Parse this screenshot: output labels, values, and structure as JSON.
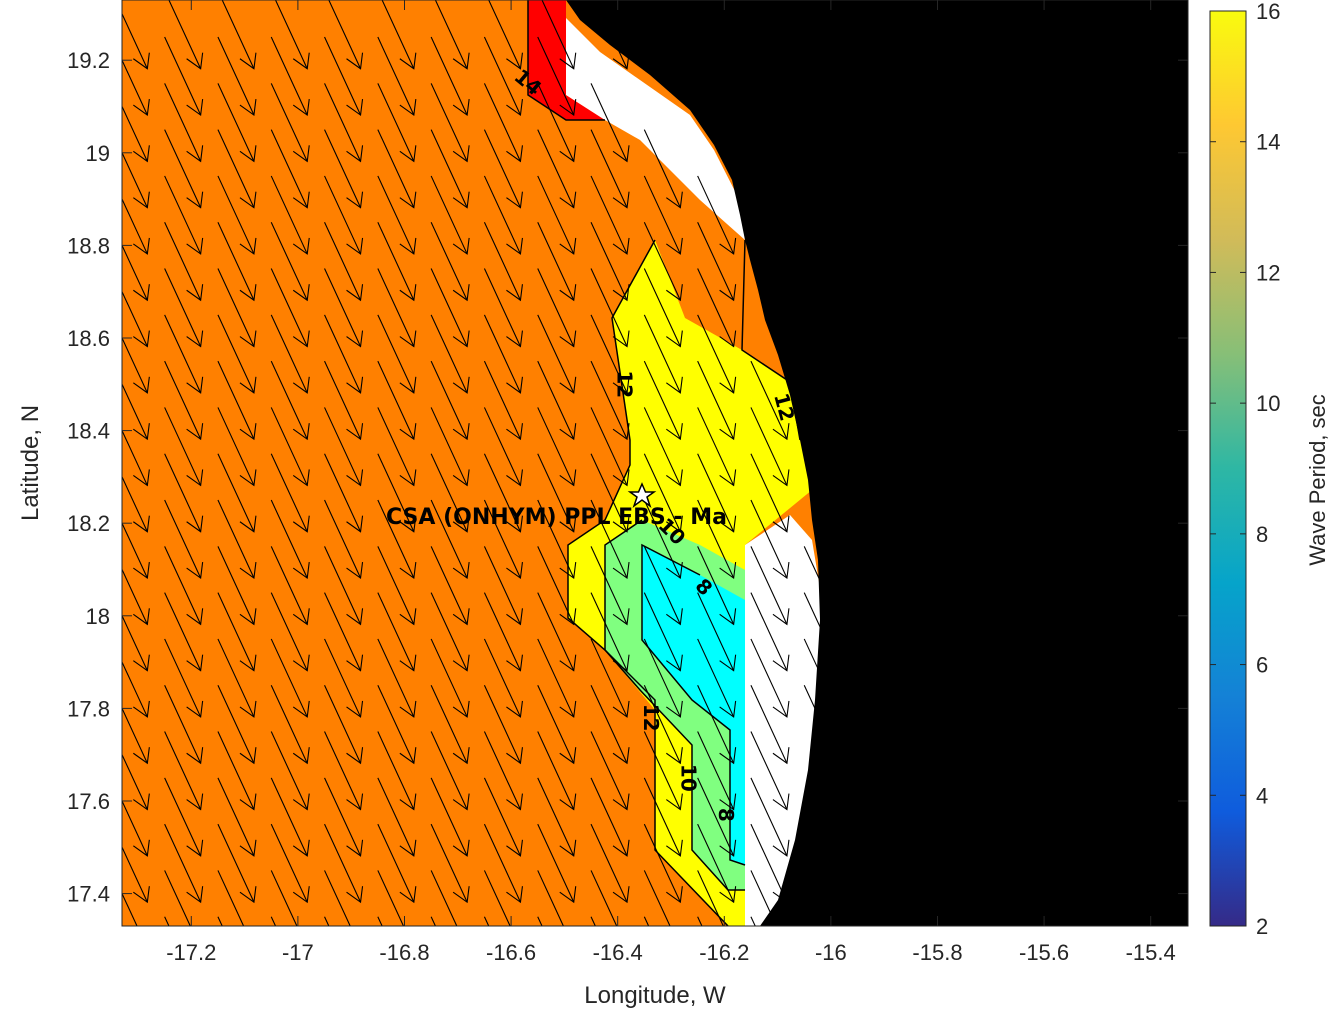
{
  "chart_data": {
    "type": "heatmap",
    "xlabel": "Longitude, W",
    "ylabel": "Latitude, N",
    "xlim": [
      -17.33,
      -15.33
    ],
    "ylim": [
      17.33,
      19.33
    ],
    "xticks": [
      -17.2,
      -17,
      -16.8,
      -16.6,
      -16.4,
      -16.2,
      -16,
      -15.8,
      -15.6,
      -15.4
    ],
    "yticks": [
      17.4,
      17.6,
      17.8,
      18,
      18.2,
      18.4,
      18.6,
      18.8,
      19,
      19.2
    ],
    "xtick_labels": [
      "-17.2",
      "-17",
      "-16.8",
      "-16.6",
      "-16.4",
      "-16.2",
      "-16",
      "-15.8",
      "-15.6",
      "-15.4"
    ],
    "ytick_labels": [
      "17.4",
      "17.6",
      "17.8",
      "18",
      "18.2",
      "18.4",
      "18.6",
      "18.8",
      "19",
      "19.2"
    ],
    "colorbar": {
      "label": "Wave Period, sec",
      "range": [
        2,
        16
      ],
      "ticks": [
        2,
        4,
        6,
        8,
        10,
        12,
        14,
        16
      ],
      "tick_labels": [
        "2",
        "4",
        "6",
        "8",
        "10",
        "12",
        "14",
        "16"
      ],
      "colormap": "parula"
    },
    "contour_levels": [
      8,
      10,
      12,
      14
    ],
    "contour_labels": [
      {
        "text": "14",
        "lon": -16.57,
        "lat": 19.15,
        "rotate": 40
      },
      {
        "text": "12",
        "lon": -16.39,
        "lat": 18.5,
        "rotate": 90
      },
      {
        "text": "12",
        "lon": -16.09,
        "lat": 18.45,
        "rotate": 75
      },
      {
        "text": "10",
        "lon": -16.3,
        "lat": 18.18,
        "rotate": 45
      },
      {
        "text": "8",
        "lon": -16.24,
        "lat": 18.06,
        "rotate": 45
      },
      {
        "text": "12",
        "lon": -16.34,
        "lat": 17.78,
        "rotate": 90
      },
      {
        "text": "10",
        "lon": -16.27,
        "lat": 17.65,
        "rotate": 90
      },
      {
        "text": "8",
        "lon": -16.2,
        "lat": 17.57,
        "rotate": 90
      }
    ],
    "annotation": {
      "text": "CSA (ONHYM) PPL EBS  - Ma",
      "lon": -16.35,
      "lat": 18.27,
      "marker": "star"
    },
    "wave_direction_field": {
      "direction": "toward southeast",
      "arrow_grid_spacing_deg": 0.1
    },
    "colors": {
      "land": "#000000",
      "no_data": "#ffffff",
      "period_14_16": "#ff8000",
      "period_gt_16": "#ff0000",
      "period_12_14": "#ffff00",
      "period_10_12": "#80ff80",
      "period_8_10": "#00ffff",
      "arrow": "#000000"
    }
  }
}
